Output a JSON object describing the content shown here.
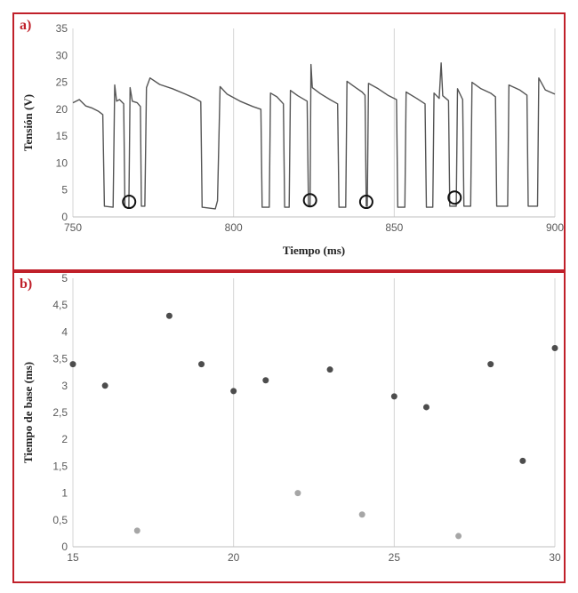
{
  "chart_data": [
    {
      "panel_label": "a)",
      "type": "line",
      "title": "",
      "xlabel": "Tiempo (ms)",
      "ylabel": "Tensión (V)",
      "xlim": [
        750,
        900
      ],
      "ylim": [
        0,
        35
      ],
      "xticks": [
        "750",
        "800",
        "850",
        "900"
      ],
      "yticks": [
        "0",
        "5",
        "10",
        "15",
        "20",
        "25",
        "30",
        "35"
      ],
      "grid": "vertical",
      "color": "#555555",
      "series": [
        {
          "values": [
            {
              "x": 750,
              "y": 21.2
            },
            {
              "x": 752,
              "y": 21.8
            },
            {
              "x": 754,
              "y": 20.6
            },
            {
              "x": 756,
              "y": 20.2
            },
            {
              "x": 758,
              "y": 19.6
            },
            {
              "x": 759.3,
              "y": 19.0
            },
            {
              "x": 759.8,
              "y": 2.0
            },
            {
              "x": 762.5,
              "y": 1.8
            },
            {
              "x": 763,
              "y": 24.5
            },
            {
              "x": 763.6,
              "y": 21.5
            },
            {
              "x": 764.5,
              "y": 21.8
            },
            {
              "x": 765.8,
              "y": 21.0
            },
            {
              "x": 766.2,
              "y": 1.8
            },
            {
              "x": 767.4,
              "y": 1.6
            },
            {
              "x": 767.8,
              "y": 24.0
            },
            {
              "x": 768.5,
              "y": 21.5
            },
            {
              "x": 770,
              "y": 21.2
            },
            {
              "x": 771,
              "y": 20.5
            },
            {
              "x": 771.3,
              "y": 2.0
            },
            {
              "x": 772.4,
              "y": 2.0
            },
            {
              "x": 772.9,
              "y": 24.0
            },
            {
              "x": 774,
              "y": 25.8
            },
            {
              "x": 777,
              "y": 24.6
            },
            {
              "x": 781,
              "y": 23.8
            },
            {
              "x": 785,
              "y": 22.8
            },
            {
              "x": 788,
              "y": 22.0
            },
            {
              "x": 789.8,
              "y": 21.4
            },
            {
              "x": 790.2,
              "y": 1.8
            },
            {
              "x": 794.3,
              "y": 1.5
            },
            {
              "x": 795,
              "y": 3.0
            },
            {
              "x": 795.8,
              "y": 24.2
            },
            {
              "x": 798,
              "y": 22.8
            },
            {
              "x": 802,
              "y": 21.5
            },
            {
              "x": 806,
              "y": 20.5
            },
            {
              "x": 808.5,
              "y": 20.0
            },
            {
              "x": 808.9,
              "y": 1.8
            },
            {
              "x": 811.1,
              "y": 1.8
            },
            {
              "x": 811.5,
              "y": 23.0
            },
            {
              "x": 813.5,
              "y": 22.3
            },
            {
              "x": 815.5,
              "y": 21.0
            },
            {
              "x": 815.9,
              "y": 1.8
            },
            {
              "x": 817.3,
              "y": 1.8
            },
            {
              "x": 817.7,
              "y": 23.5
            },
            {
              "x": 820,
              "y": 22.5
            },
            {
              "x": 822.9,
              "y": 21.5
            },
            {
              "x": 823.3,
              "y": 2.2
            },
            {
              "x": 823.8,
              "y": 2.0
            },
            {
              "x": 824.1,
              "y": 28.3
            },
            {
              "x": 824.5,
              "y": 24.0
            },
            {
              "x": 827,
              "y": 22.9
            },
            {
              "x": 830,
              "y": 21.8
            },
            {
              "x": 832.4,
              "y": 21.0
            },
            {
              "x": 832.8,
              "y": 1.8
            },
            {
              "x": 834.9,
              "y": 1.8
            },
            {
              "x": 835.3,
              "y": 25.2
            },
            {
              "x": 838,
              "y": 24.0
            },
            {
              "x": 840,
              "y": 23.2
            },
            {
              "x": 840.9,
              "y": 22.6
            },
            {
              "x": 841.3,
              "y": 2.0
            },
            {
              "x": 841.6,
              "y": 2.0
            },
            {
              "x": 842,
              "y": 24.8
            },
            {
              "x": 845,
              "y": 23.8
            },
            {
              "x": 848,
              "y": 22.6
            },
            {
              "x": 850.7,
              "y": 21.8
            },
            {
              "x": 851.1,
              "y": 1.8
            },
            {
              "x": 853.3,
              "y": 1.8
            },
            {
              "x": 853.7,
              "y": 23.2
            },
            {
              "x": 857,
              "y": 22.0
            },
            {
              "x": 859.6,
              "y": 21.0
            },
            {
              "x": 860,
              "y": 1.8
            },
            {
              "x": 862,
              "y": 1.8
            },
            {
              "x": 862.4,
              "y": 23.0
            },
            {
              "x": 864,
              "y": 22.0
            },
            {
              "x": 864.6,
              "y": 28.6
            },
            {
              "x": 865.1,
              "y": 22.5
            },
            {
              "x": 866.9,
              "y": 21.6
            },
            {
              "x": 867.3,
              "y": 2.0
            },
            {
              "x": 869.3,
              "y": 2.0
            },
            {
              "x": 869.7,
              "y": 23.8
            },
            {
              "x": 871.3,
              "y": 21.8
            },
            {
              "x": 871.7,
              "y": 2.0
            },
            {
              "x": 873.8,
              "y": 2.0
            },
            {
              "x": 874.2,
              "y": 25.0
            },
            {
              "x": 877,
              "y": 23.8
            },
            {
              "x": 880,
              "y": 23.0
            },
            {
              "x": 881.5,
              "y": 22.3
            },
            {
              "x": 881.9,
              "y": 2.0
            },
            {
              "x": 885.3,
              "y": 2.0
            },
            {
              "x": 885.7,
              "y": 24.5
            },
            {
              "x": 889,
              "y": 23.6
            },
            {
              "x": 891.3,
              "y": 22.6
            },
            {
              "x": 891.7,
              "y": 2.0
            },
            {
              "x": 894.6,
              "y": 2.0
            },
            {
              "x": 895,
              "y": 25.8
            },
            {
              "x": 897,
              "y": 23.6
            },
            {
              "x": 900,
              "y": 22.8
            }
          ]
        }
      ],
      "markers": [
        {
          "x": 767.5,
          "y": 2.8
        },
        {
          "x": 823.8,
          "y": 3.1
        },
        {
          "x": 841.3,
          "y": 2.8
        },
        {
          "x": 868.8,
          "y": 3.6
        }
      ]
    },
    {
      "panel_label": "b)",
      "type": "scatter",
      "title": "",
      "xlabel": "",
      "ylabel": "Tiempo de base (ms)",
      "xlim": [
        15,
        30
      ],
      "ylim": [
        0,
        5
      ],
      "xticks": [
        "15",
        "20",
        "25",
        "30"
      ],
      "yticks": [
        "0",
        "0,5",
        "1",
        "1,5",
        "2",
        "2,5",
        "3",
        "3,5",
        "4",
        "4,5",
        "5"
      ],
      "grid": "vertical",
      "series": [
        {
          "color": "#4d4d4d",
          "values": [
            {
              "x": 15,
              "y": 3.4
            },
            {
              "x": 16,
              "y": 3.0
            },
            {
              "x": 18,
              "y": 4.3
            },
            {
              "x": 19,
              "y": 3.4
            },
            {
              "x": 20,
              "y": 2.9
            },
            {
              "x": 21,
              "y": 3.1
            },
            {
              "x": 23,
              "y": 3.3
            },
            {
              "x": 25,
              "y": 2.8
            },
            {
              "x": 26,
              "y": 2.6
            },
            {
              "x": 28,
              "y": 3.4
            },
            {
              "x": 29,
              "y": 1.6
            },
            {
              "x": 30,
              "y": 3.7
            }
          ]
        },
        {
          "color": "#a6a6a6",
          "values": [
            {
              "x": 17,
              "y": 0.3
            },
            {
              "x": 22,
              "y": 1.0
            },
            {
              "x": 24,
              "y": 0.6
            },
            {
              "x": 27,
              "y": 0.2
            }
          ]
        }
      ]
    }
  ]
}
